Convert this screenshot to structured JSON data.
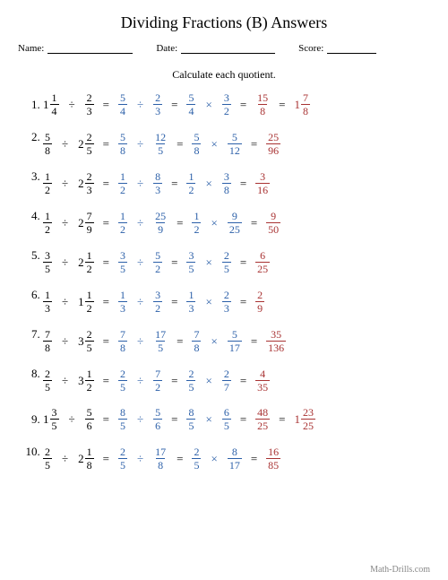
{
  "title": "Dividing Fractions (B) Answers",
  "meta": {
    "name_label": "Name:",
    "date_label": "Date:",
    "score_label": "Score:"
  },
  "instruction": "Calculate each quotient.",
  "footer": "Math-Drills.com",
  "colors": {
    "blue": "#2b5fa8",
    "red": "#a83232",
    "text": "#000000",
    "bg": "#ffffff"
  },
  "problems": [
    {
      "l": {
        "w": "1",
        "n": "1",
        "d": "4"
      },
      "r": {
        "n": "2",
        "d": "3"
      },
      "s1l": {
        "n": "5",
        "d": "4"
      },
      "s1r": {
        "n": "2",
        "d": "3"
      },
      "s2l": {
        "n": "5",
        "d": "4"
      },
      "s2r": {
        "n": "3",
        "d": "2"
      },
      "ans": {
        "n": "15",
        "d": "8"
      },
      "mix": {
        "w": "1",
        "n": "7",
        "d": "8"
      }
    },
    {
      "l": {
        "n": "5",
        "d": "8"
      },
      "r": {
        "w": "2",
        "n": "2",
        "d": "5"
      },
      "s1l": {
        "n": "5",
        "d": "8"
      },
      "s1r": {
        "n": "12",
        "d": "5"
      },
      "s2l": {
        "n": "5",
        "d": "8"
      },
      "s2r": {
        "n": "5",
        "d": "12"
      },
      "ans": {
        "n": "25",
        "d": "96"
      }
    },
    {
      "l": {
        "n": "1",
        "d": "2"
      },
      "r": {
        "w": "2",
        "n": "2",
        "d": "3"
      },
      "s1l": {
        "n": "1",
        "d": "2"
      },
      "s1r": {
        "n": "8",
        "d": "3"
      },
      "s2l": {
        "n": "1",
        "d": "2"
      },
      "s2r": {
        "n": "3",
        "d": "8"
      },
      "ans": {
        "n": "3",
        "d": "16"
      }
    },
    {
      "l": {
        "n": "1",
        "d": "2"
      },
      "r": {
        "w": "2",
        "n": "7",
        "d": "9"
      },
      "s1l": {
        "n": "1",
        "d": "2"
      },
      "s1r": {
        "n": "25",
        "d": "9"
      },
      "s2l": {
        "n": "1",
        "d": "2"
      },
      "s2r": {
        "n": "9",
        "d": "25"
      },
      "ans": {
        "n": "9",
        "d": "50"
      }
    },
    {
      "l": {
        "n": "3",
        "d": "5"
      },
      "r": {
        "w": "2",
        "n": "1",
        "d": "2"
      },
      "s1l": {
        "n": "3",
        "d": "5"
      },
      "s1r": {
        "n": "5",
        "d": "2"
      },
      "s2l": {
        "n": "3",
        "d": "5"
      },
      "s2r": {
        "n": "2",
        "d": "5"
      },
      "ans": {
        "n": "6",
        "d": "25"
      }
    },
    {
      "l": {
        "n": "1",
        "d": "3"
      },
      "r": {
        "w": "1",
        "n": "1",
        "d": "2"
      },
      "s1l": {
        "n": "1",
        "d": "3"
      },
      "s1r": {
        "n": "3",
        "d": "2"
      },
      "s2l": {
        "n": "1",
        "d": "3"
      },
      "s2r": {
        "n": "2",
        "d": "3"
      },
      "ans": {
        "n": "2",
        "d": "9"
      }
    },
    {
      "l": {
        "n": "7",
        "d": "8"
      },
      "r": {
        "w": "3",
        "n": "2",
        "d": "5"
      },
      "s1l": {
        "n": "7",
        "d": "8"
      },
      "s1r": {
        "n": "17",
        "d": "5"
      },
      "s2l": {
        "n": "7",
        "d": "8"
      },
      "s2r": {
        "n": "5",
        "d": "17"
      },
      "ans": {
        "n": "35",
        "d": "136"
      }
    },
    {
      "l": {
        "n": "2",
        "d": "5"
      },
      "r": {
        "w": "3",
        "n": "1",
        "d": "2"
      },
      "s1l": {
        "n": "2",
        "d": "5"
      },
      "s1r": {
        "n": "7",
        "d": "2"
      },
      "s2l": {
        "n": "2",
        "d": "5"
      },
      "s2r": {
        "n": "2",
        "d": "7"
      },
      "ans": {
        "n": "4",
        "d": "35"
      }
    },
    {
      "l": {
        "w": "1",
        "n": "3",
        "d": "5"
      },
      "r": {
        "n": "5",
        "d": "6"
      },
      "s1l": {
        "n": "8",
        "d": "5"
      },
      "s1r": {
        "n": "5",
        "d": "6"
      },
      "s2l": {
        "n": "8",
        "d": "5"
      },
      "s2r": {
        "n": "6",
        "d": "5"
      },
      "ans": {
        "n": "48",
        "d": "25"
      },
      "mix": {
        "w": "1",
        "n": "23",
        "d": "25"
      }
    },
    {
      "l": {
        "n": "2",
        "d": "5"
      },
      "r": {
        "w": "2",
        "n": "1",
        "d": "8"
      },
      "s1l": {
        "n": "2",
        "d": "5"
      },
      "s1r": {
        "n": "17",
        "d": "8"
      },
      "s2l": {
        "n": "2",
        "d": "5"
      },
      "s2r": {
        "n": "8",
        "d": "17"
      },
      "ans": {
        "n": "16",
        "d": "85"
      }
    }
  ]
}
